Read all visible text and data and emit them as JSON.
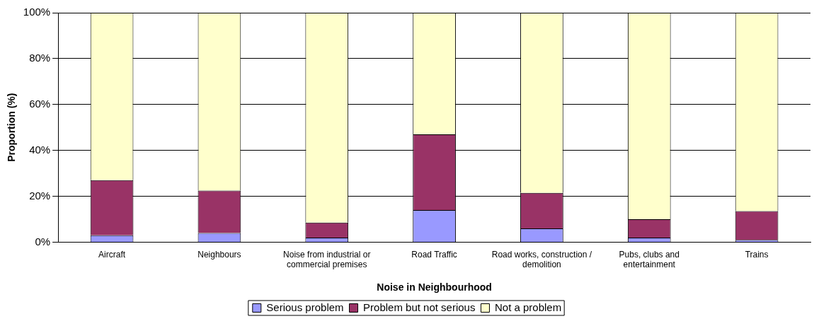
{
  "chart_data": {
    "type": "bar",
    "stacked": true,
    "xlabel": "Noise in Neighbourhood",
    "ylabel": "Proportion (%)",
    "categories": [
      "Aircraft",
      "Neighbours",
      "Noise from industrial or commercial premises",
      "Road Traffic",
      "Road works, construction / demolition",
      "Pubs, clubs and entertainment",
      "Trains"
    ],
    "series": [
      {
        "name": "Serious problem",
        "color": "#9999ff",
        "values": [
          3,
          4,
          2,
          14,
          6,
          2,
          1
        ]
      },
      {
        "name": "Problem but not serious",
        "color": "#993366",
        "values": [
          24,
          18.5,
          6.5,
          33,
          15.5,
          8,
          12.5
        ]
      },
      {
        "name": "Not a problem",
        "color": "#ffffcc",
        "values": [
          73,
          77.5,
          91.5,
          53,
          78.5,
          90,
          86.5
        ]
      }
    ],
    "ylim": [
      0,
      100
    ],
    "yticks": [
      {
        "value": 0,
        "label": "0%"
      },
      {
        "value": 20,
        "label": "20%"
      },
      {
        "value": 40,
        "label": "40%"
      },
      {
        "value": 60,
        "label": "60%"
      },
      {
        "value": 80,
        "label": "80%"
      },
      {
        "value": 100,
        "label": "100%"
      }
    ],
    "grid": "y",
    "legend": "bottom"
  }
}
